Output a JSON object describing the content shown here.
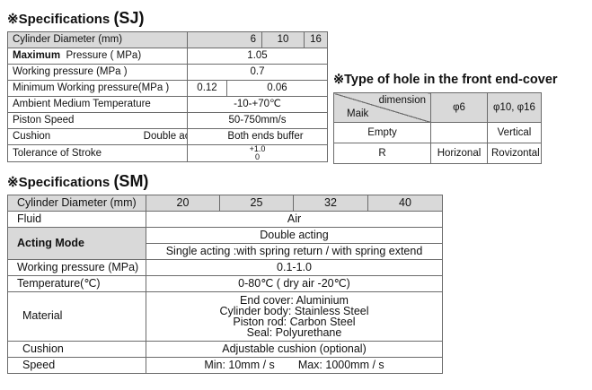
{
  "sj": {
    "heading": "※Specifications",
    "code": "(SJ)",
    "rows": {
      "cyl_label": "Cylinder Diameter (mm)",
      "cyl_values": [
        "6",
        "10",
        "16"
      ],
      "max_label_bold": "Maximum",
      "max_label_rest": "Pressure ( MPa)",
      "max_value": "1.05",
      "work_label": "Working pressure (MPa )",
      "work_value": "0.7",
      "min_label": "Minimum Working pressure(MPa )",
      "min_values": [
        "0.12",
        "0.06"
      ],
      "temp_label": "Ambient Medium Temperature",
      "temp_value": "-10-+70℃",
      "speed_label": "Piston Speed",
      "speed_value": "50-750mm/s",
      "cushion_label": "Cushion",
      "cushion_type": "Double acting",
      "cushion_value": "Both ends buffer",
      "tol_label": "Tolerance of Stroke",
      "tol_upper": "+1.0",
      "tol_lower": "0"
    }
  },
  "hole": {
    "heading": "※Type of hole in the front end-cover",
    "header_dimension": "dimension",
    "header_maik": "Maik",
    "col_a": "φ6",
    "col_b": "φ10, φ16",
    "rows": [
      {
        "label": "Empty",
        "a": "",
        "b": "Vertical"
      },
      {
        "label": "R",
        "a": "Horizonal",
        "b": "Rovizontal"
      }
    ]
  },
  "sm": {
    "heading": "※Specifications",
    "code": "(SM)",
    "cyl_label": "Cylinder Diameter (mm)",
    "cyl_values": [
      "20",
      "25",
      "32",
      "40"
    ],
    "fluid_label": "Fluid",
    "fluid_value": "Air",
    "acting_label": "Acting Mode",
    "acting_value_1": "Double acting",
    "acting_value_2": "Single acting :with spring return / with spring extend",
    "work_label": "Working pressure (MPa)",
    "work_value": "0.1-1.0",
    "temp_label": "Temperature(℃)",
    "temp_value": "0-80℃ ( dry air -20℃)",
    "material_label": "Material",
    "material_lines": [
      "End cover: Aluminium",
      "Cylinder body: Stainless Steel",
      "Piston rod: Carbon Steel",
      "Seal: Polyurethane"
    ],
    "cushion_label": "Cushion",
    "cushion_value": "Adjustable cushion (optional)",
    "speed_label": "Speed",
    "speed_min": "Min: 10mm / s",
    "speed_max": "Max: 1000mm / s"
  }
}
